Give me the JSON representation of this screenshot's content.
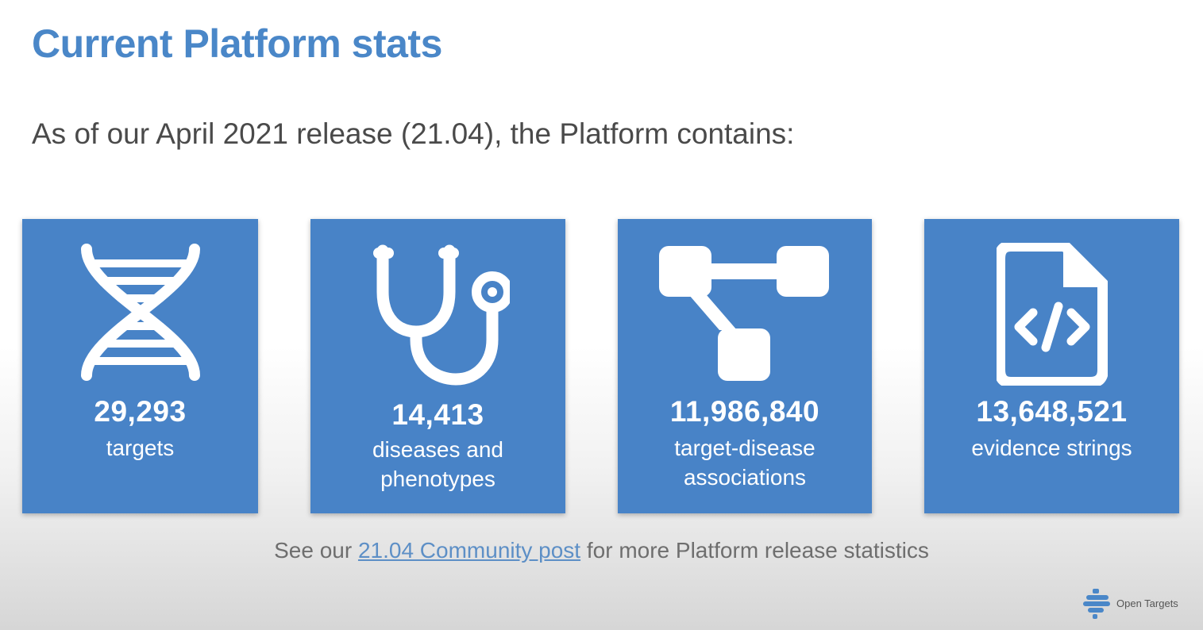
{
  "page": {
    "title": "Current Platform stats",
    "subtitle": "As of our April 2021 release (21.04), the Platform contains:"
  },
  "stats": [
    {
      "value": "29,293",
      "label": "targets",
      "icon": "dna-icon"
    },
    {
      "value": "14,413",
      "label": "diseases and phenotypes",
      "icon": "stethoscope-icon"
    },
    {
      "value": "11,986,840",
      "label": "target-disease associations",
      "icon": "network-icon"
    },
    {
      "value": "13,648,521",
      "label": "evidence strings",
      "icon": "code-file-icon"
    }
  ],
  "footer": {
    "prefix": "See our ",
    "link": "21.04 Community post",
    "suffix": " for more Platform release statistics"
  },
  "logo": {
    "text": "Open Targets"
  },
  "colors": {
    "accent": "#4a87c8",
    "card": "#4883c7",
    "link": "#5d8fc6"
  }
}
